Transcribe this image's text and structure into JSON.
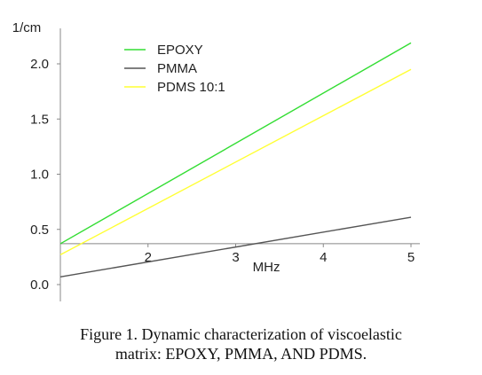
{
  "chart_data": {
    "type": "line",
    "y_unit_label": "1/cm",
    "x_unit_label": "MHz",
    "xlim": [
      1,
      5
    ],
    "ylim": [
      0.0,
      2.0
    ],
    "x_ticks": [
      "2",
      "3",
      "4",
      "5"
    ],
    "y_ticks": [
      "0.0",
      "0.5",
      "1.0",
      "1.5",
      "2.0"
    ],
    "y_tick_values": [
      0.0,
      0.5,
      1.0,
      1.5,
      2.0
    ],
    "x_tick_values": [
      2,
      3,
      4,
      5
    ],
    "axis_crossing_y": 0.37,
    "legend_position": "top-left",
    "grid": false,
    "series": [
      {
        "name": "EPOXY",
        "color": "#33dd33",
        "x": [
          1,
          5
        ],
        "y": [
          0.37,
          2.19
        ]
      },
      {
        "name": "PMMA",
        "color": "#555555",
        "x": [
          1,
          5
        ],
        "y": [
          0.07,
          0.61
        ]
      },
      {
        "name": "PDMS 10:1",
        "color": "#ffff33",
        "x": [
          1,
          5
        ],
        "y": [
          0.27,
          1.95
        ]
      }
    ]
  },
  "caption": {
    "line1": "Figure 1. Dynamic characterization of viscoelastic",
    "line2": "matrix: EPOXY, PMMA, AND PDMS."
  }
}
